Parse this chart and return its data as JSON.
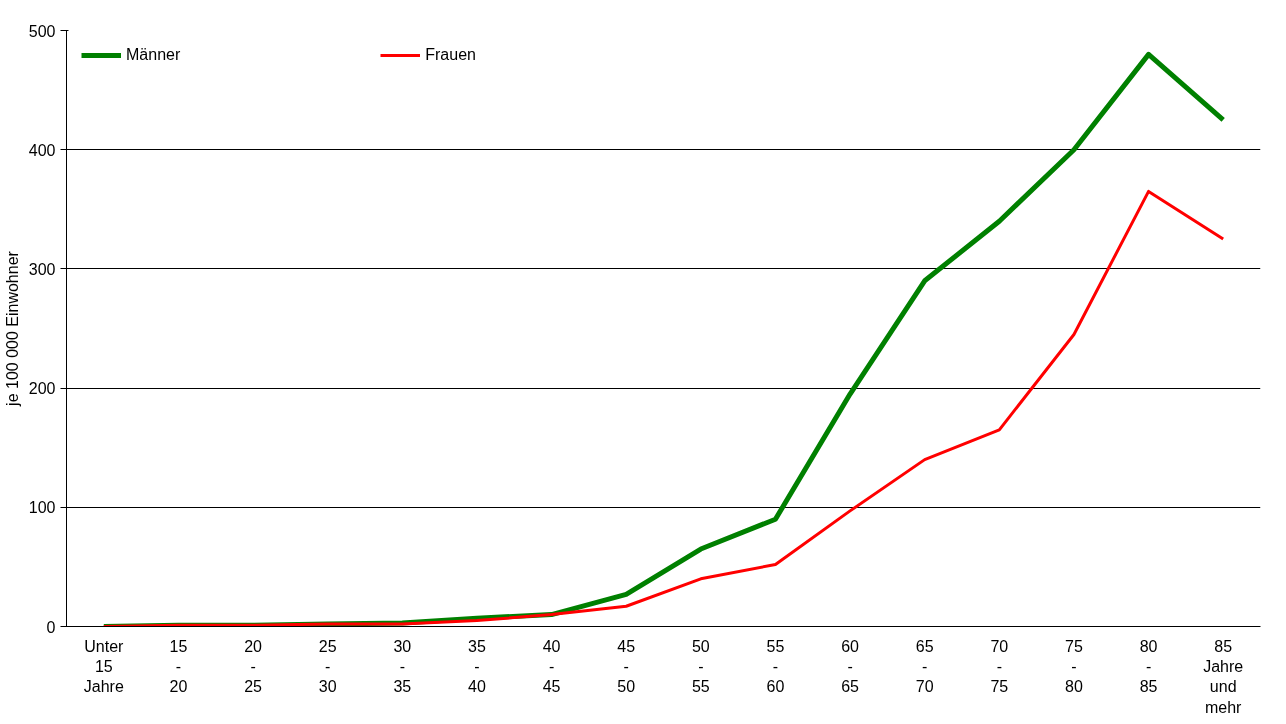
{
  "chart_data": {
    "type": "line",
    "ylabel": "je 100 000 Einwohner",
    "categories": [
      "Unter\n15\nJahre",
      "15\n-\n20",
      "20\n-\n25",
      "25\n-\n30",
      "30\n-\n35",
      "35\n-\n40",
      "40\n-\n45",
      "45\n-\n50",
      "50\n-\n55",
      "55\n-\n60",
      "60\n-\n65",
      "65\n-\n70",
      "70\n-\n75",
      "75\n-\n80",
      "80\n-\n85",
      "85\nJahre\nund\nmehr"
    ],
    "series": [
      {
        "name": "Männer",
        "color": "#008000",
        "values": [
          0,
          1,
          1,
          2,
          3,
          7,
          10,
          27,
          65,
          90,
          195,
          290,
          340,
          400,
          480,
          425
        ]
      },
      {
        "name": "Frauen",
        "color": "#ff0000",
        "values": [
          0,
          1,
          1,
          2,
          2,
          5,
          10,
          17,
          40,
          52,
          97,
          140,
          165,
          245,
          365,
          325
        ]
      }
    ],
    "ylim": [
      0,
      500
    ],
    "yticks": [
      0,
      100,
      200,
      300,
      400,
      500
    ],
    "grid": "y",
    "legend": "top left",
    "line_style": "solid"
  }
}
